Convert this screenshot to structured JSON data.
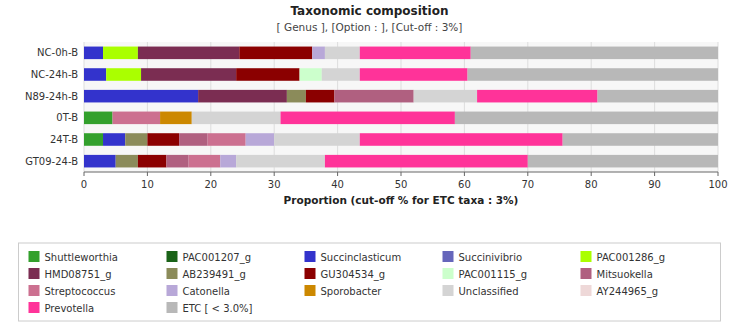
{
  "chart_data": {
    "type": "bar",
    "orientation": "horizontal",
    "stacked": true,
    "title": "Taxonomic composition",
    "subtitle": "[ Genus ], [Option : ], [Cut-off : 3%]",
    "xlabel": "Proportion (cut-off % for ETC taxa : 3%)",
    "categories": [
      "NC-0h-B",
      "NC-24h-B",
      "N89-24h-B",
      "0T-B",
      "24T-B",
      "GT09-24-B"
    ],
    "xlim": [
      0,
      100
    ],
    "xticks": [
      0,
      10,
      20,
      30,
      40,
      50,
      60,
      70,
      80,
      90,
      100
    ],
    "grid": true,
    "legend": "bottom",
    "series": [
      {
        "name": "Shuttleworthia",
        "color": "#33a02c",
        "values": [
          null,
          null,
          null,
          4.5,
          3.0,
          null
        ]
      },
      {
        "name": "PAC001207_g",
        "color": "#1a6318",
        "values": [
          null,
          null,
          null,
          null,
          null,
          null
        ]
      },
      {
        "name": "Succinclasticum",
        "color": "#3333cc",
        "values": [
          3.0,
          3.5,
          18.0,
          null,
          3.5,
          5.0
        ]
      },
      {
        "name": "Succinivibrio",
        "color": "#6666bb",
        "values": [
          null,
          null,
          null,
          null,
          null,
          null
        ]
      },
      {
        "name": "PAC001286_g",
        "color": "#aaff00",
        "values": [
          5.5,
          5.5,
          null,
          null,
          null,
          null
        ]
      },
      {
        "name": "HMD08751_g",
        "color": "#7b2d52",
        "values": [
          16.0,
          15.0,
          14.0,
          null,
          null,
          null
        ]
      },
      {
        "name": "AB239491_g",
        "color": "#8b8b5a",
        "values": [
          null,
          null,
          3.0,
          null,
          3.5,
          3.5
        ]
      },
      {
        "name": "GU304534_g",
        "color": "#8b0000",
        "values": [
          11.5,
          10.0,
          4.5,
          null,
          5.0,
          4.5
        ]
      },
      {
        "name": "PAC001115_g",
        "color": "#ccffcc",
        "values": [
          null,
          3.5,
          null,
          null,
          null,
          null
        ]
      },
      {
        "name": "Mitsuokella",
        "color": "#b06080",
        "values": [
          null,
          null,
          12.5,
          null,
          4.5,
          3.5
        ]
      },
      {
        "name": "Streptococcus",
        "color": "#cc7090",
        "values": [
          null,
          null,
          null,
          7.5,
          6.0,
          5.0
        ]
      },
      {
        "name": "Catonella",
        "color": "#b8a8d8",
        "values": [
          2.0,
          null,
          null,
          null,
          4.5,
          2.5
        ]
      },
      {
        "name": "Sporobacter",
        "color": "#cc8800",
        "values": [
          null,
          null,
          null,
          5.0,
          null,
          null
        ]
      },
      {
        "name": "Unclassified",
        "color": "#d4d4d4",
        "values": [
          5.5,
          6.0,
          10.0,
          14.0,
          13.5,
          14.0
        ]
      },
      {
        "name": "AY244965_g",
        "color": "#eed8d8",
        "values": [
          null,
          null,
          null,
          null,
          null,
          null
        ]
      },
      {
        "name": "Prevotella",
        "color": "#ff3399",
        "values": [
          17.5,
          17.0,
          19.0,
          27.5,
          32.0,
          32.0
        ]
      },
      {
        "name": "ETC [ < 3.0%]",
        "color": "#b8b8b8",
        "values": [
          39.0,
          39.5,
          19.0,
          41.5,
          24.5,
          30.0
        ]
      }
    ]
  }
}
